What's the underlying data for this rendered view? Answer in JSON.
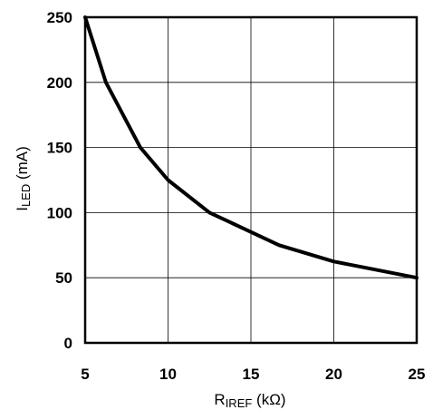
{
  "chart_data": {
    "type": "line",
    "xlabel": {
      "main": "R",
      "sub": "IREF",
      "unit": " (kΩ)"
    },
    "ylabel": {
      "main": "I",
      "sub": "LED",
      "unit": " (mA)"
    },
    "xlim": [
      5,
      25
    ],
    "ylim": [
      0,
      250
    ],
    "x_ticks": [
      5,
      10,
      15,
      20,
      25
    ],
    "y_ticks": [
      0,
      50,
      100,
      150,
      200,
      250
    ],
    "x_tick_labels": [
      "5",
      "10",
      "15",
      "20",
      "25"
    ],
    "y_tick_labels": [
      "0",
      "50",
      "100",
      "150",
      "200",
      "250"
    ],
    "grid": true,
    "series": [
      {
        "x": [
          5,
          6.25,
          8.33,
          10,
          12.5,
          16.7,
          20,
          25
        ],
        "y": [
          250,
          200,
          150,
          125,
          100,
          75,
          62.5,
          50
        ]
      }
    ]
  }
}
